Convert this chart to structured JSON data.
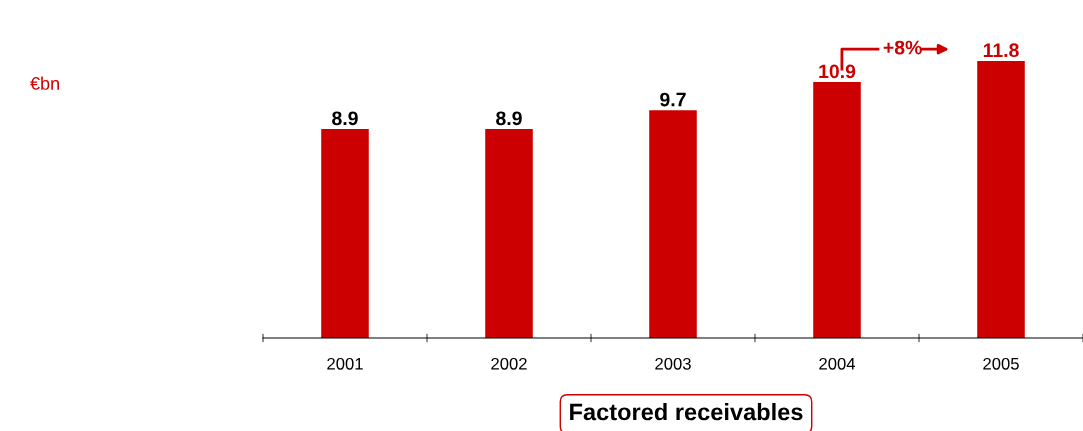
{
  "chart_data": {
    "type": "bar",
    "categories": [
      "2001",
      "2002",
      "2003",
      "2004",
      "2005"
    ],
    "values": [
      8.9,
      8.9,
      9.7,
      10.9,
      11.8
    ],
    "color": "#cc0000",
    "tick_labels": "x",
    "data_labels": true,
    "grid": false,
    "xlabel": "Factored receivables",
    "annotations": [
      "+8%",
      "€bn"
    ]
  }
}
